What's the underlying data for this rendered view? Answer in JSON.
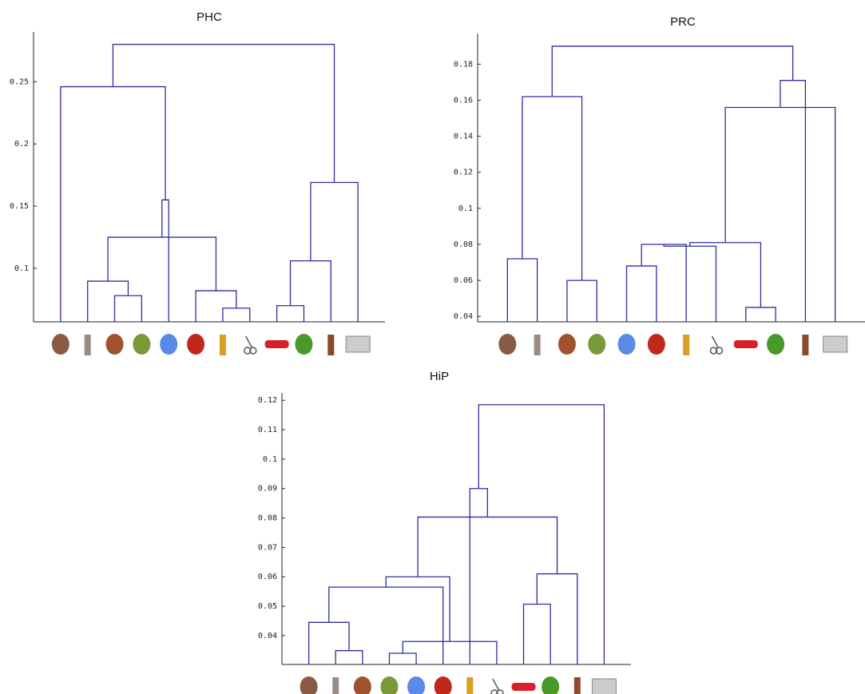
{
  "chart_data": [
    {
      "type": "dendrogram",
      "title": "PHC",
      "color": "#2e2e9e",
      "ylim": [
        0.057,
        0.29
      ],
      "yticks": [
        0.1,
        0.15,
        0.2,
        0.25
      ],
      "merges": [
        {
          "left": 2,
          "right": 3,
          "height": 0.078
        },
        {
          "left": 1,
          "right": 12,
          "height": 0.0897
        },
        {
          "left": 6,
          "right": 7,
          "height": 0.068
        },
        {
          "left": 5,
          "right": 14,
          "height": 0.082
        },
        {
          "left": 13,
          "right": 15,
          "height": 0.125
        },
        {
          "left": 16,
          "right": 4,
          "height": 0.155
        },
        {
          "left": 0,
          "right": 17,
          "height": 0.246
        },
        {
          "left": 8,
          "right": 9,
          "height": 0.07
        },
        {
          "left": 19,
          "right": 10,
          "height": 0.106
        },
        {
          "left": 20,
          "right": 11,
          "height": 0.169
        },
        {
          "left": 18,
          "right": 21,
          "height": 0.28
        }
      ]
    },
    {
      "type": "dendrogram",
      "title": "PRC",
      "color": "#2e2e9e",
      "ylim": [
        0.037,
        0.197
      ],
      "yticks": [
        0.04,
        0.06,
        0.08,
        0.1,
        0.12,
        0.14,
        0.16,
        0.18
      ],
      "merges": [
        {
          "left": 0,
          "right": 1,
          "height": 0.072
        },
        {
          "left": 4,
          "right": 5,
          "height": 0.068
        },
        {
          "left": 13,
          "right": 6,
          "height": 0.08
        },
        {
          "left": 8,
          "right": 9,
          "height": 0.045
        },
        {
          "left": 14,
          "right": 7,
          "height": 0.079
        },
        {
          "left": 16,
          "right": 15,
          "height": 0.081
        },
        {
          "left": 17,
          "right": 11,
          "height": 0.156
        },
        {
          "left": 18,
          "right": 10,
          "height": 0.171
        },
        {
          "left": 2,
          "right": 3,
          "height": 0.06
        },
        {
          "left": 12,
          "right": 20,
          "height": 0.162
        },
        {
          "left": 21,
          "right": 19,
          "height": 0.19
        }
      ]
    },
    {
      "type": "dendrogram",
      "title": "HiP",
      "color": "#2e2e9e",
      "ylim": [
        0.0302,
        0.1225
      ],
      "yticks": [
        0.04,
        0.05,
        0.06,
        0.07,
        0.08,
        0.09,
        0.1,
        0.11,
        0.12
      ],
      "merges": [
        {
          "left": 1,
          "right": 2,
          "height": 0.0349
        },
        {
          "left": 3,
          "right": 4,
          "height": 0.034
        },
        {
          "left": 0,
          "right": 12,
          "height": 0.0445
        },
        {
          "left": 13,
          "right": 7,
          "height": 0.038
        },
        {
          "left": 14,
          "right": 5,
          "height": 0.0565
        },
        {
          "left": 16,
          "right": 15,
          "height": 0.06
        },
        {
          "left": 8,
          "right": 9,
          "height": 0.0507
        },
        {
          "left": 18,
          "right": 10,
          "height": 0.061
        },
        {
          "left": 17,
          "right": 19,
          "height": 0.0803
        },
        {
          "left": 20,
          "right": 6,
          "height": 0.09
        },
        {
          "left": 21,
          "right": 11,
          "height": 0.1185
        }
      ]
    }
  ]
}
